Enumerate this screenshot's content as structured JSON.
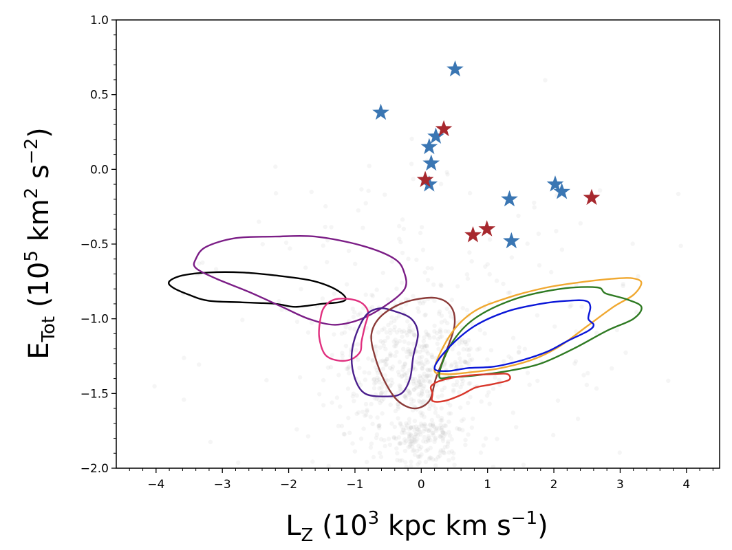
{
  "chart_data": {
    "type": "scatter",
    "title": "",
    "xlabel": "L_Z (10^3 kpc km s^-1)",
    "ylabel": "E_Tot (10^5 km^2 s^-2)",
    "xlabel_parts": {
      "main": "L",
      "sub": "Z",
      "open": " (10",
      "sup1": "3",
      "mid": " kpc km s",
      "sup2": "−1",
      "close": ")"
    },
    "ylabel_parts": {
      "main": "E",
      "sub": "Tot",
      "open": " (10",
      "sup1": "5",
      "mid1": " km",
      "sup2": "2",
      "mid2": " s",
      "sup3": "−2",
      "close": ")"
    },
    "xlim": [
      -4.6,
      4.5
    ],
    "ylim": [
      -2.0,
      1.0
    ],
    "xticks": [
      -4,
      -3,
      -2,
      -1,
      0,
      1,
      2,
      3,
      4
    ],
    "xtick_labels": [
      "−4",
      "−3",
      "−2",
      "−1",
      "0",
      "1",
      "2",
      "3",
      "4"
    ],
    "yticks": [
      -2.0,
      -1.5,
      -1.0,
      -0.5,
      0.0,
      0.5,
      1.0
    ],
    "ytick_labels": [
      "−2.0",
      "−1.5",
      "−1.0",
      "−0.5",
      "0.0",
      "0.5",
      "1.0"
    ],
    "grid": false,
    "series": [
      {
        "marker": "star",
        "color": "#3a76b3",
        "points": [
          [
            0.51,
            0.67
          ],
          [
            -0.61,
            0.38
          ],
          [
            0.22,
            0.22
          ],
          [
            0.12,
            0.15
          ],
          [
            0.15,
            0.04
          ],
          [
            0.12,
            -0.1
          ],
          [
            2.02,
            -0.1
          ],
          [
            2.12,
            -0.15
          ],
          [
            1.33,
            -0.2
          ],
          [
            1.36,
            -0.48
          ]
        ]
      },
      {
        "marker": "star",
        "color": "#a7282e",
        "points": [
          [
            0.34,
            0.27
          ],
          [
            0.06,
            -0.07
          ],
          [
            2.57,
            -0.19
          ],
          [
            0.99,
            -0.4
          ],
          [
            0.78,
            -0.44
          ]
        ]
      }
    ],
    "background_scatter": {
      "color": "#bbbbbb",
      "opacity": 0.15
    },
    "contours": [
      {
        "color": "#000000",
        "points": [
          [
            -3.8,
            -0.75
          ],
          [
            -3.6,
            -0.71
          ],
          [
            -3.2,
            -0.69
          ],
          [
            -2.7,
            -0.69
          ],
          [
            -2.2,
            -0.71
          ],
          [
            -1.7,
            -0.74
          ],
          [
            -1.4,
            -0.78
          ],
          [
            -1.2,
            -0.83
          ],
          [
            -1.14,
            -0.87
          ],
          [
            -1.25,
            -0.89
          ],
          [
            -1.5,
            -0.9
          ],
          [
            -1.9,
            -0.92
          ],
          [
            -2.2,
            -0.9
          ],
          [
            -2.7,
            -0.89
          ],
          [
            -3.2,
            -0.88
          ],
          [
            -3.5,
            -0.84
          ],
          [
            -3.75,
            -0.79
          ]
        ]
      },
      {
        "color": "#7b1d86",
        "points": [
          [
            -3.4,
            -0.6
          ],
          [
            -3.25,
            -0.52
          ],
          [
            -2.8,
            -0.46
          ],
          [
            -2.2,
            -0.45
          ],
          [
            -1.6,
            -0.45
          ],
          [
            -0.9,
            -0.51
          ],
          [
            -0.4,
            -0.6
          ],
          [
            -0.25,
            -0.7
          ],
          [
            -0.25,
            -0.8
          ],
          [
            -0.5,
            -0.9
          ],
          [
            -0.9,
            -1.0
          ],
          [
            -1.3,
            -1.04
          ],
          [
            -1.7,
            -1.0
          ],
          [
            -2.1,
            -0.92
          ],
          [
            -2.6,
            -0.82
          ],
          [
            -3.1,
            -0.73
          ],
          [
            -3.4,
            -0.66
          ]
        ]
      },
      {
        "color": "#e0307f",
        "points": [
          [
            -1.52,
            -1.0
          ],
          [
            -1.46,
            -0.92
          ],
          [
            -1.3,
            -0.87
          ],
          [
            -1.05,
            -0.87
          ],
          [
            -0.88,
            -0.9
          ],
          [
            -0.8,
            -0.96
          ],
          [
            -0.85,
            -1.05
          ],
          [
            -0.9,
            -1.15
          ],
          [
            -0.92,
            -1.22
          ],
          [
            -1.05,
            -1.27
          ],
          [
            -1.25,
            -1.28
          ],
          [
            -1.45,
            -1.24
          ],
          [
            -1.54,
            -1.12
          ]
        ]
      },
      {
        "color": "#4a1e8c",
        "points": [
          [
            -1.05,
            -1.25
          ],
          [
            -0.98,
            -1.1
          ],
          [
            -0.82,
            -0.97
          ],
          [
            -0.62,
            -0.93
          ],
          [
            -0.4,
            -0.95
          ],
          [
            -0.15,
            -1.0
          ],
          [
            -0.05,
            -1.1
          ],
          [
            -0.12,
            -1.25
          ],
          [
            -0.17,
            -1.4
          ],
          [
            -0.3,
            -1.5
          ],
          [
            -0.55,
            -1.52
          ],
          [
            -0.85,
            -1.5
          ],
          [
            -1.0,
            -1.4
          ]
        ]
      },
      {
        "color": "#8b3a38",
        "points": [
          [
            -0.75,
            -1.1
          ],
          [
            -0.6,
            -0.98
          ],
          [
            -0.25,
            -0.89
          ],
          [
            0.2,
            -0.86
          ],
          [
            0.45,
            -0.92
          ],
          [
            0.5,
            -1.05
          ],
          [
            0.35,
            -1.25
          ],
          [
            0.22,
            -1.4
          ],
          [
            0.12,
            -1.55
          ],
          [
            -0.1,
            -1.6
          ],
          [
            -0.35,
            -1.55
          ],
          [
            -0.55,
            -1.42
          ],
          [
            -0.7,
            -1.25
          ]
        ]
      },
      {
        "color": "#f0a830",
        "points": [
          [
            0.2,
            -1.33
          ],
          [
            0.45,
            -1.1
          ],
          [
            0.8,
            -0.95
          ],
          [
            1.3,
            -0.86
          ],
          [
            1.9,
            -0.79
          ],
          [
            2.5,
            -0.75
          ],
          [
            2.95,
            -0.73
          ],
          [
            3.2,
            -0.73
          ],
          [
            3.32,
            -0.76
          ],
          [
            3.2,
            -0.84
          ],
          [
            2.9,
            -0.92
          ],
          [
            2.5,
            -1.05
          ],
          [
            2.1,
            -1.18
          ],
          [
            1.7,
            -1.27
          ],
          [
            1.2,
            -1.33
          ],
          [
            0.7,
            -1.36
          ],
          [
            0.35,
            -1.37
          ]
        ]
      },
      {
        "color": "#2e7a22",
        "points": [
          [
            0.27,
            -1.38
          ],
          [
            0.45,
            -1.17
          ],
          [
            0.8,
            -1.0
          ],
          [
            1.4,
            -0.87
          ],
          [
            2.1,
            -0.8
          ],
          [
            2.65,
            -0.79
          ],
          [
            2.78,
            -0.83
          ],
          [
            3.1,
            -0.87
          ],
          [
            3.32,
            -0.92
          ],
          [
            3.2,
            -1.0
          ],
          [
            2.8,
            -1.08
          ],
          [
            2.3,
            -1.2
          ],
          [
            1.8,
            -1.3
          ],
          [
            1.3,
            -1.35
          ],
          [
            0.8,
            -1.38
          ],
          [
            0.45,
            -1.39
          ]
        ]
      },
      {
        "color": "#0a16d8",
        "points": [
          [
            0.2,
            -1.33
          ],
          [
            0.4,
            -1.2
          ],
          [
            0.8,
            -1.05
          ],
          [
            1.3,
            -0.95
          ],
          [
            1.8,
            -0.9
          ],
          [
            2.2,
            -0.88
          ],
          [
            2.48,
            -0.88
          ],
          [
            2.55,
            -0.92
          ],
          [
            2.52,
            -1.0
          ],
          [
            2.6,
            -1.04
          ],
          [
            2.52,
            -1.08
          ],
          [
            2.2,
            -1.15
          ],
          [
            1.9,
            -1.22
          ],
          [
            1.5,
            -1.28
          ],
          [
            1.1,
            -1.32
          ],
          [
            0.7,
            -1.33
          ],
          [
            0.4,
            -1.35
          ]
        ]
      },
      {
        "color": "#d8362a",
        "points": [
          [
            0.15,
            -1.45
          ],
          [
            0.32,
            -1.41
          ],
          [
            0.7,
            -1.38
          ],
          [
            1.1,
            -1.37
          ],
          [
            1.3,
            -1.37
          ],
          [
            1.32,
            -1.41
          ],
          [
            1.05,
            -1.44
          ],
          [
            0.82,
            -1.46
          ],
          [
            0.6,
            -1.51
          ],
          [
            0.35,
            -1.55
          ],
          [
            0.17,
            -1.55
          ],
          [
            0.17,
            -1.5
          ]
        ]
      }
    ]
  }
}
